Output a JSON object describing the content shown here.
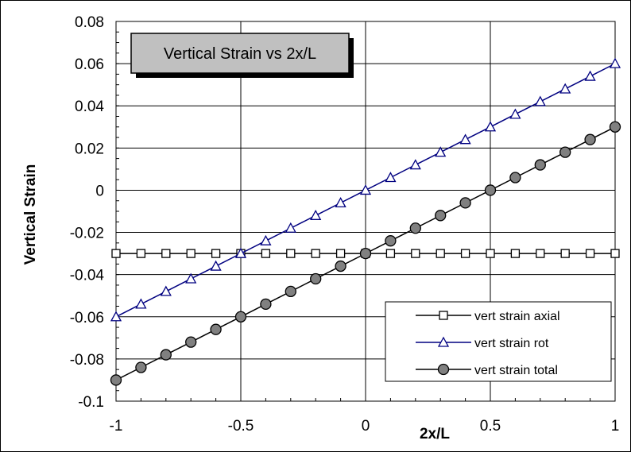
{
  "chart_data": {
    "type": "line",
    "title": "Vertical Strain vs 2x/L",
    "xlabel": "2x/L",
    "ylabel": "Vertical Strain",
    "xlim": [
      -1,
      1
    ],
    "ylim": [
      -0.1,
      0.08
    ],
    "x_ticks": [
      "-1",
      "-0.5",
      "0",
      "0.5",
      "1"
    ],
    "y_ticks": [
      "0.08",
      "0.06",
      "0.04",
      "0.02",
      "0",
      "-0.02",
      "-0.04",
      "-0.06",
      "-0.08",
      "-0.1"
    ],
    "grid": true,
    "legend_position": "bottom-right",
    "x": [
      -1,
      -0.9,
      -0.8,
      -0.7,
      -0.6,
      -0.5,
      -0.4,
      -0.3,
      -0.2,
      -0.1,
      0,
      0.1,
      0.2,
      0.3,
      0.4,
      0.5,
      0.6,
      0.7,
      0.8,
      0.9,
      1
    ],
    "series": [
      {
        "name": "vert strain axial",
        "color": "#000000",
        "marker": "square",
        "values": [
          -0.03,
          -0.03,
          -0.03,
          -0.03,
          -0.03,
          -0.03,
          -0.03,
          -0.03,
          -0.03,
          -0.03,
          -0.03,
          -0.03,
          -0.03,
          -0.03,
          -0.03,
          -0.03,
          -0.03,
          -0.03,
          -0.03,
          -0.03,
          -0.03
        ]
      },
      {
        "name": "vert strain rot",
        "color": "#000080",
        "marker": "triangle",
        "values": [
          -0.06,
          -0.054,
          -0.048,
          -0.042,
          -0.036,
          -0.03,
          -0.024,
          -0.018,
          -0.012,
          -0.006,
          0,
          0.006,
          0.012,
          0.018,
          0.024,
          0.03,
          0.036,
          0.042,
          0.048,
          0.054,
          0.06
        ]
      },
      {
        "name": "vert strain total",
        "color": "#000000",
        "marker": "circle",
        "values": [
          -0.09,
          -0.084,
          -0.078,
          -0.072,
          -0.066,
          -0.06,
          -0.054,
          -0.048,
          -0.042,
          -0.036,
          -0.03,
          -0.024,
          -0.018,
          -0.012,
          -0.006,
          0,
          0.006,
          0.012,
          0.018,
          0.024,
          0.03
        ]
      }
    ]
  }
}
